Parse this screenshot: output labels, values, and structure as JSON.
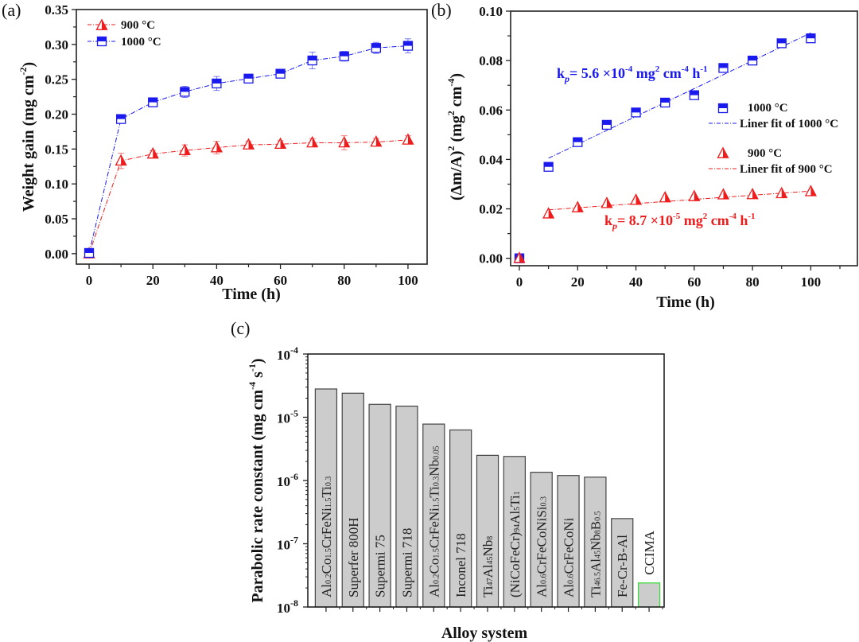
{
  "chart_data": [
    {
      "panel": "(a)",
      "type": "line",
      "title": "",
      "xlabel": "Time (h)",
      "ylabel": "Weight gain (mg cm^-2)",
      "ylabel_parts": {
        "main": "Weight gain (mg cm",
        "sup": "-2",
        "end": ")"
      },
      "xlim": [
        -4,
        106
      ],
      "ylim": [
        -0.015,
        0.35
      ],
      "xticks": [
        0,
        20,
        40,
        60,
        80,
        100
      ],
      "xtick_labels": [
        "0",
        "20",
        "40",
        "60",
        "80",
        "100"
      ],
      "yticks": [
        0.0,
        0.05,
        0.1,
        0.15,
        0.2,
        0.25,
        0.3,
        0.35
      ],
      "ytick_labels": [
        "0.00",
        "0.05",
        "0.10",
        "0.15",
        "0.20",
        "0.25",
        "0.30",
        "0.35"
      ],
      "legend_position": "top-left",
      "x": [
        0,
        10,
        20,
        30,
        40,
        50,
        60,
        70,
        80,
        90,
        100
      ],
      "series": [
        {
          "name": "900 °C",
          "color": "#ee1c1c",
          "marker": "triangle-half",
          "line": "dash-dot",
          "values": [
            0.0,
            0.133,
            0.143,
            0.148,
            0.152,
            0.156,
            0.157,
            0.159,
            0.159,
            0.16,
            0.163
          ],
          "errors": [
            0.003,
            0.011,
            0.005,
            0.008,
            0.009,
            0.005,
            0.005,
            0.006,
            0.01,
            0.005,
            0.006
          ]
        },
        {
          "name": "1000 °C",
          "color": "#1a1aee",
          "marker": "square-half",
          "line": "dash-dot",
          "values": [
            0.001,
            0.193,
            0.217,
            0.232,
            0.244,
            0.251,
            0.258,
            0.277,
            0.283,
            0.295,
            0.298
          ],
          "errors": [
            0.003,
            0.003,
            0.004,
            0.008,
            0.01,
            0.006,
            0.006,
            0.012,
            0.007,
            0.008,
            0.01
          ]
        }
      ]
    },
    {
      "panel": "(b)",
      "type": "scatter",
      "title": "",
      "xlabel": "Time (h)",
      "ylabel": "(Δm/A)^2 (mg^2 cm^-4)",
      "ylabel_parts": {
        "a": "(Δm/A)",
        "sup1": "2",
        "b": " (mg",
        "sup2": "2",
        "c": " cm",
        "sup3": "-4",
        "d": ")"
      },
      "xlim": [
        -3,
        116
      ],
      "ylim": [
        -0.003,
        0.1
      ],
      "xticks": [
        0,
        20,
        40,
        60,
        80,
        100
      ],
      "xtick_labels": [
        "0",
        "20",
        "40",
        "60",
        "80",
        "100"
      ],
      "yticks": [
        0.0,
        0.02,
        0.04,
        0.06,
        0.08,
        0.1
      ],
      "ytick_labels": [
        "0.00",
        "0.02",
        "0.04",
        "0.06",
        "0.08",
        "0.10"
      ],
      "legend_position": "center-right",
      "x": [
        0,
        10,
        20,
        30,
        40,
        50,
        60,
        70,
        80,
        90,
        100
      ],
      "series": [
        {
          "name": "1000 °C",
          "color": "#1a1aee",
          "marker": "square-half",
          "values": [
            0.0,
            0.037,
            0.047,
            0.054,
            0.059,
            0.063,
            0.066,
            0.077,
            0.08,
            0.087,
            0.089
          ],
          "fit": {
            "name": "Liner fit of 1000 °C",
            "x": [
              10,
              100
            ],
            "y": [
              0.0405,
              0.0912
            ]
          }
        },
        {
          "name": "900 °C",
          "color": "#ee1c1c",
          "marker": "triangle-half",
          "values": [
            0.0,
            0.018,
            0.0205,
            0.0222,
            0.0235,
            0.0245,
            0.025,
            0.0257,
            0.0258,
            0.0262,
            0.027
          ],
          "fit": {
            "name": "Liner fit of 900 °C",
            "x": [
              10,
              100
            ],
            "y": [
              0.0196,
              0.0272
            ]
          }
        }
      ],
      "annotations": [
        {
          "color": "#1a1aee",
          "k": "k",
          "sub": "p",
          "text": "= 5.6 ×10",
          "exp": "-4",
          "unit1": " mg",
          "u1sup": "2",
          "unit2": " cm",
          "u2sup": "-4",
          "unit3": " h",
          "u3sup": "-1"
        },
        {
          "color": "#ee1c1c",
          "k": "k",
          "sub": "p",
          "text": "= 8.7 ×10",
          "exp": "-5",
          "unit1": " mg",
          "u1sup": "2",
          "unit2": " cm",
          "u2sup": "-4",
          "unit3": " h",
          "u3sup": "-1"
        }
      ]
    },
    {
      "panel": "(c)",
      "type": "bar",
      "title": "",
      "xlabel": "Alloy system",
      "ylabel": "Parabolic rate constant (mg cm^-4 s^-1)",
      "ylabel_parts": {
        "main": "Parabolic rate constant (mg cm",
        "sup1": "-4",
        "mid": " s",
        "sup2": "-1",
        "end": ")"
      },
      "yscale": "log",
      "ylim": [
        1e-08,
        0.0001
      ],
      "ytick_exponents": [
        "-8",
        "-7",
        "-6",
        "-5",
        "-4"
      ],
      "ytick_base": "10",
      "categories": [
        {
          "label": [
            [
              "Al",
              ""
            ],
            [
              "0.2",
              "s"
            ],
            [
              "Co",
              ""
            ],
            [
              "1.5",
              "s"
            ],
            [
              "CrFeNi",
              ""
            ],
            [
              "1.5",
              "s"
            ],
            [
              "Ti",
              ""
            ],
            [
              "0.3",
              "s"
            ]
          ]
        },
        {
          "label": [
            [
              "Superfer 800H",
              ""
            ]
          ]
        },
        {
          "label": [
            [
              "Supermi 75",
              ""
            ]
          ]
        },
        {
          "label": [
            [
              "Supermi 718",
              ""
            ]
          ]
        },
        {
          "label": [
            [
              "Al",
              ""
            ],
            [
              "0.2",
              "s"
            ],
            [
              "Co",
              ""
            ],
            [
              "1.5",
              "s"
            ],
            [
              "CrFeNi",
              ""
            ],
            [
              "1.5",
              "s"
            ],
            [
              "Ti",
              ""
            ],
            [
              "0.3",
              "s"
            ],
            [
              "Nb",
              ""
            ],
            [
              "0.05",
              "s"
            ]
          ]
        },
        {
          "label": [
            [
              "Inconel 718",
              ""
            ]
          ]
        },
        {
          "label": [
            [
              "Ti",
              ""
            ],
            [
              "47",
              "s"
            ],
            [
              "Al",
              ""
            ],
            [
              "45",
              "s"
            ],
            [
              "Nb",
              ""
            ],
            [
              "8",
              "s"
            ]
          ]
        },
        {
          "label": [
            [
              "(NiCoFeCr)",
              ""
            ],
            [
              "94",
              "s"
            ],
            [
              "Al",
              ""
            ],
            [
              "5",
              "s"
            ],
            [
              "Ti",
              ""
            ],
            [
              "1",
              "s"
            ]
          ]
        },
        {
          "label": [
            [
              "Al",
              ""
            ],
            [
              "0.6",
              "s"
            ],
            [
              "CrFeCoNiSi",
              ""
            ],
            [
              "0.3",
              "s"
            ]
          ]
        },
        {
          "label": [
            [
              "Al",
              ""
            ],
            [
              "0.6",
              "s"
            ],
            [
              "CrFeCoNi",
              ""
            ]
          ]
        },
        {
          "label": [
            [
              "Ti",
              ""
            ],
            [
              "46.5",
              "s"
            ],
            [
              "Al",
              ""
            ],
            [
              "45",
              "s"
            ],
            [
              "Nb",
              ""
            ],
            [
              "8",
              "s"
            ],
            [
              "B",
              ""
            ],
            [
              "0.5",
              "s"
            ]
          ]
        },
        {
          "label": [
            [
              "Fe-Cr-B-Al",
              ""
            ]
          ]
        },
        {
          "label": [
            [
              "CCIMA",
              ""
            ]
          ]
        }
      ],
      "category_names": [
        "Al0.2Co1.5CrFeNi1.5Ti0.3",
        "Superfer 800H",
        "Supermi 75",
        "Supermi 718",
        "Al0.2Co1.5CrFeNi1.5Ti0.3Nb0.05",
        "Inconel 718",
        "Ti47Al45Nb8",
        "(NiCoFeCr)94Al5Ti1",
        "Al0.6CrFeCoNiSi0.3",
        "Al0.6CrFeCoNi",
        "Ti46.5Al45Nb8B0.5",
        "Fe-Cr-B-Al",
        "CCIMA"
      ],
      "values": [
        2.8e-05,
        2.4e-05,
        1.6e-05,
        1.5e-05,
        7.8e-06,
        6.3e-06,
        2.5e-06,
        2.4e-06,
        1.35e-06,
        1.2e-06,
        1.13e-06,
        2.5e-07,
        2.4e-08
      ],
      "bar_fill": "#cccccc",
      "bar_edge": "#444444",
      "highlight_edge": "#33dd33",
      "highlight_index": 12
    }
  ],
  "colors": {
    "red": "#ee1c1c",
    "blue": "#1a1aee",
    "axis": "#222222"
  }
}
